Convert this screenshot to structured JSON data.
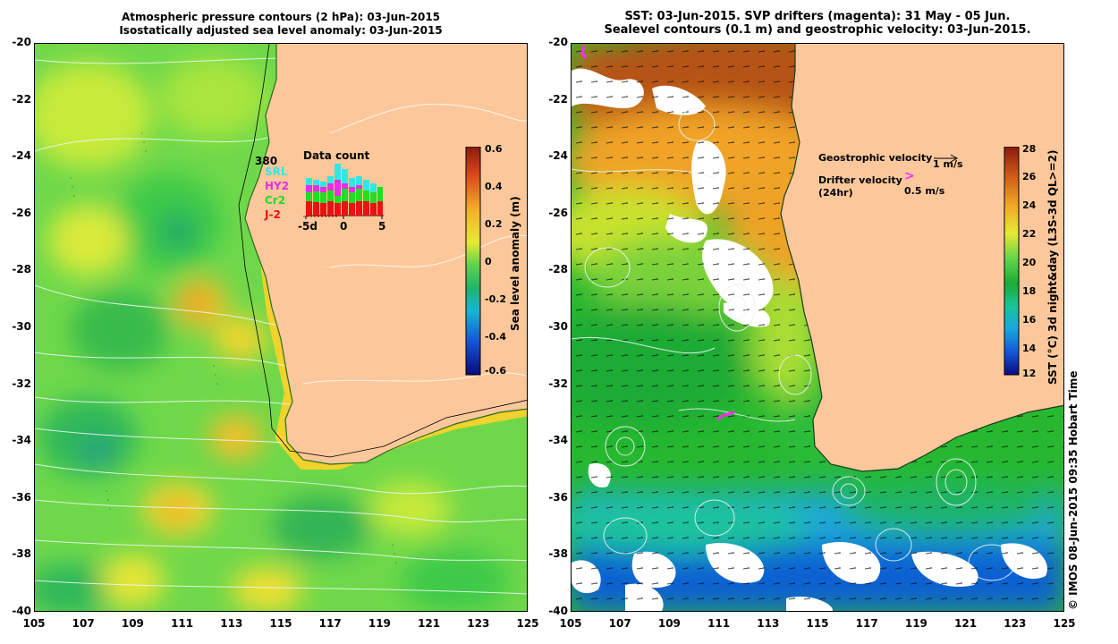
{
  "left_panel": {
    "title_line1": "Atmospheric pressure contours (2 hPa): 03-Jun-2015",
    "title_line2": "Isostatically adjusted sea level anomaly: 03-Jun-2015",
    "colorbar_label": "Sea level anomaly (m)",
    "colorbar_ticks": [
      "0.6",
      "0.4",
      "0.2",
      "0",
      "-0.2",
      "-0.4",
      "-0.6"
    ],
    "inset": {
      "title": "Data count",
      "total": "380",
      "satellites": [
        {
          "name": "SRL",
          "color": "#33e6e6"
        },
        {
          "name": "HY2",
          "color": "#e62ee6"
        },
        {
          "name": "Cr2",
          "color": "#22dd22"
        },
        {
          "name": "J-2",
          "color": "#ee1111"
        }
      ],
      "x_ticks": [
        "-5d",
        "0",
        "5"
      ]
    }
  },
  "right_panel": {
    "title_line1": "SST: 03-Jun-2015. SVP drifters (magenta): 31 May - 05 Jun.",
    "title_line2": "Sealevel contours (0.1 m) and geostrophic velocity: 03-Jun-2015.",
    "colorbar_label": "SST (°C) 3d night&day (L3S-3d QL>=2)",
    "colorbar_ticks": [
      "28",
      "26",
      "24",
      "22",
      "20",
      "18",
      "16",
      "14",
      "12"
    ],
    "legend": {
      "geostrophic_label": "Geostrophic velocity",
      "geostrophic_scale": "1 m/s",
      "drifter_label": "Drifter velocity",
      "drifter_sub": "(24hr)",
      "drifter_scale": "0.5 m/s",
      "drifter_symbol": ">"
    }
  },
  "axes": {
    "y_ticks": [
      "-20",
      "-22",
      "-24",
      "-26",
      "-28",
      "-30",
      "-32",
      "-34",
      "-36",
      "-38",
      "-40"
    ],
    "x_ticks": [
      "105",
      "107",
      "109",
      "111",
      "113",
      "115",
      "117",
      "119",
      "121",
      "123",
      "125"
    ]
  },
  "credit": "© IMOS 08-Jun-2015 09:35 Hobart Time",
  "colors": {
    "land": "#fcc89b",
    "drifter": "#ff2bff"
  }
}
